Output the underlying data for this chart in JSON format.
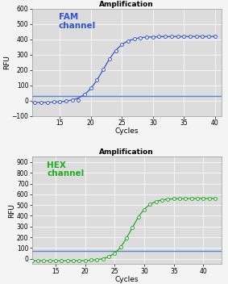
{
  "title": "Amplification",
  "xlabel": "Cycles",
  "ylabel": "RFU",
  "fam_color": "#3355cc",
  "hex_color": "#22aa22",
  "threshold_fam_color": "#5588cc",
  "threshold_hex_color": "#5588cc",
  "fam_label": "FAM\nchannel",
  "hex_label": "HEX\nchannel",
  "fam_xlim": [
    10.5,
    41
  ],
  "fam_ylim": [
    -100,
    600
  ],
  "fam_xticks": [
    15,
    20,
    25,
    30,
    35,
    40
  ],
  "fam_yticks": [
    -100,
    0,
    100,
    200,
    300,
    400,
    500,
    600
  ],
  "fam_threshold": 30,
  "hex_xlim": [
    11,
    43
  ],
  "hex_ylim": [
    -50,
    950
  ],
  "hex_xticks": [
    15,
    20,
    25,
    30,
    35,
    40
  ],
  "hex_yticks": [
    0,
    100,
    200,
    300,
    400,
    500,
    600,
    700,
    800,
    900
  ],
  "hex_threshold": 75,
  "bg_color": "#dcdcdc",
  "fig_bg": "#f4f4f4",
  "title_fontsize": 6.5,
  "label_fontsize": 7.5,
  "tick_fontsize": 5.5,
  "axis_label_fontsize": 6.5
}
